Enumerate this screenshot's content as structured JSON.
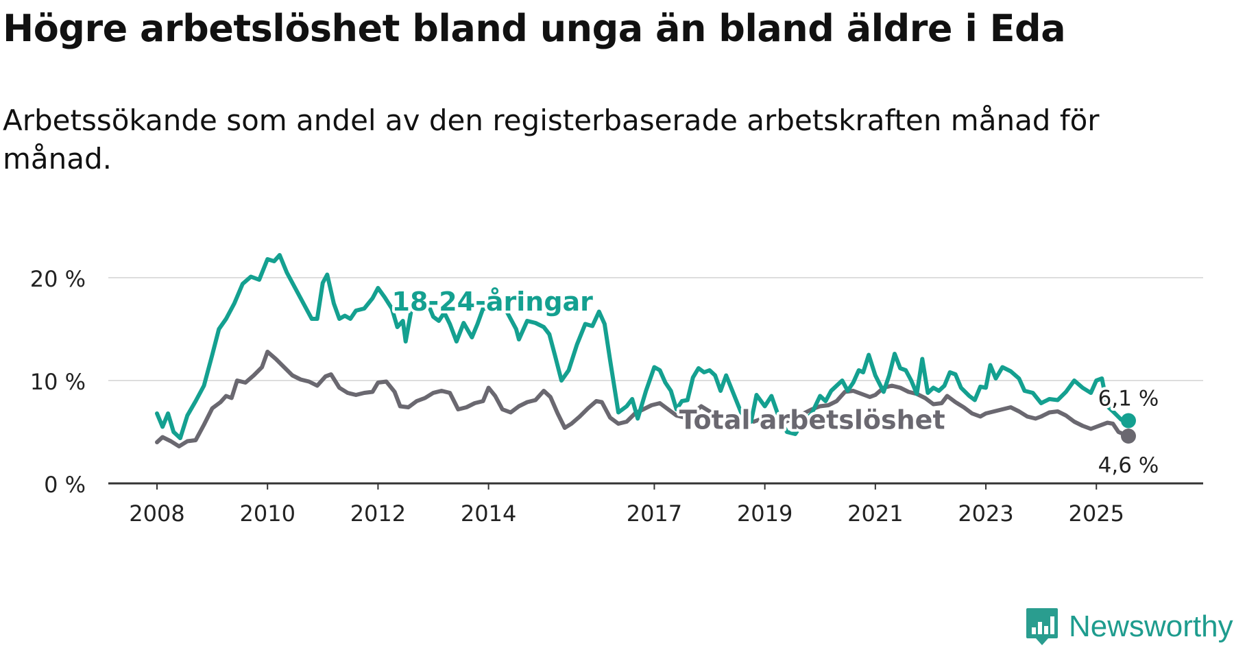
{
  "header": {
    "title": "Högre arbetslöshet bland unga än bland äldre i Eda",
    "subtitle": "Arbetssökande som andel av den registerbaserade arbetskraften månad för månad."
  },
  "brand": {
    "name": "Newsworthy",
    "icon": "bar-chart-logo-icon",
    "color": "#2a9d8f"
  },
  "colors": {
    "youth": "#14a090",
    "total": "#6a6870",
    "grid": "#dddddd",
    "axis": "#333333"
  },
  "chart_data": {
    "type": "line",
    "title": "Högre arbetslöshet bland unga än bland äldre i Eda",
    "xlabel": "",
    "ylabel": "",
    "xlim": [
      2008.0,
      2026.25
    ],
    "ylim": [
      0,
      21
    ],
    "y_ticks": [
      0,
      10,
      20
    ],
    "y_tick_labels": [
      "0 %",
      "10 %",
      "20 %"
    ],
    "x_ticks": [
      2008,
      2010,
      2012,
      2014,
      2017,
      2019,
      2021,
      2023,
      2025
    ],
    "x_tick_labels": [
      "2008",
      "2010",
      "2012",
      "2014",
      "2017",
      "2019",
      "2021",
      "2023",
      "2025"
    ],
    "series": [
      {
        "name": "18-24-åringar",
        "label": "18-24-åringar",
        "end_label": "6,1 %",
        "color": "#14a090",
        "points": [
          [
            2008.0,
            6.8
          ],
          [
            2008.1,
            5.5
          ],
          [
            2008.2,
            6.8
          ],
          [
            2008.3,
            5.0
          ],
          [
            2008.42,
            4.4
          ],
          [
            2008.55,
            6.6
          ],
          [
            2008.7,
            8.0
          ],
          [
            2008.85,
            9.5
          ],
          [
            2009.0,
            12.5
          ],
          [
            2009.12,
            15.0
          ],
          [
            2009.25,
            16.0
          ],
          [
            2009.4,
            17.5
          ],
          [
            2009.55,
            19.4
          ],
          [
            2009.7,
            20.1
          ],
          [
            2009.85,
            19.8
          ],
          [
            2010.0,
            21.8
          ],
          [
            2010.12,
            21.6
          ],
          [
            2010.22,
            22.2
          ],
          [
            2010.35,
            20.5
          ],
          [
            2010.5,
            19.0
          ],
          [
            2010.65,
            17.5
          ],
          [
            2010.8,
            16.0
          ],
          [
            2010.9,
            16.0
          ],
          [
            2011.0,
            19.5
          ],
          [
            2011.08,
            20.3
          ],
          [
            2011.2,
            17.5
          ],
          [
            2011.3,
            16.0
          ],
          [
            2011.4,
            16.3
          ],
          [
            2011.5,
            16.0
          ],
          [
            2011.6,
            16.8
          ],
          [
            2011.75,
            17.0
          ],
          [
            2011.9,
            18.0
          ],
          [
            2012.0,
            19.0
          ],
          [
            2012.12,
            18.1
          ],
          [
            2012.25,
            17.0
          ],
          [
            2012.35,
            15.2
          ],
          [
            2012.45,
            15.8
          ],
          [
            2012.5,
            13.8
          ],
          [
            2012.6,
            16.8
          ],
          [
            2012.75,
            17.0
          ],
          [
            2012.9,
            17.5
          ],
          [
            2013.0,
            16.2
          ],
          [
            2013.1,
            15.8
          ],
          [
            2013.2,
            16.6
          ],
          [
            2013.3,
            15.5
          ],
          [
            2013.42,
            13.8
          ],
          [
            2013.55,
            15.6
          ],
          [
            2013.7,
            14.2
          ],
          [
            2013.8,
            15.5
          ],
          [
            2013.9,
            17.0
          ],
          [
            2014.05,
            17.0
          ],
          [
            2014.3,
            17.0
          ],
          [
            2014.5,
            15.0
          ],
          [
            2014.55,
            14.0
          ],
          [
            2014.7,
            15.8
          ],
          [
            2014.85,
            15.6
          ],
          [
            2015.0,
            15.2
          ],
          [
            2015.1,
            14.5
          ],
          [
            2015.2,
            12.5
          ],
          [
            2015.32,
            10.0
          ],
          [
            2015.45,
            11.0
          ],
          [
            2015.6,
            13.5
          ],
          [
            2015.75,
            15.5
          ],
          [
            2015.88,
            15.3
          ],
          [
            2016.0,
            16.7
          ],
          [
            2016.1,
            15.5
          ],
          [
            2016.2,
            12.0
          ],
          [
            2016.35,
            6.9
          ],
          [
            2016.5,
            7.5
          ],
          [
            2016.6,
            8.2
          ],
          [
            2016.7,
            6.3
          ],
          [
            2016.85,
            9.0
          ],
          [
            2017.0,
            11.3
          ],
          [
            2017.1,
            11.0
          ],
          [
            2017.2,
            9.8
          ],
          [
            2017.3,
            9.0
          ],
          [
            2017.4,
            7.2
          ],
          [
            2017.5,
            8.0
          ],
          [
            2017.6,
            8.1
          ],
          [
            2017.7,
            10.3
          ],
          [
            2017.8,
            11.2
          ],
          [
            2017.9,
            10.8
          ],
          [
            2018.0,
            11.0
          ],
          [
            2018.1,
            10.5
          ],
          [
            2018.2,
            9.0
          ],
          [
            2018.3,
            10.5
          ],
          [
            2018.45,
            8.5
          ],
          [
            2018.6,
            6.5
          ],
          [
            2018.75,
            6.0
          ],
          [
            2018.85,
            8.6
          ],
          [
            2019.0,
            7.5
          ],
          [
            2019.12,
            8.5
          ],
          [
            2019.25,
            6.5
          ],
          [
            2019.4,
            5.0
          ],
          [
            2019.55,
            4.8
          ],
          [
            2019.7,
            6.0
          ],
          [
            2019.85,
            6.8
          ],
          [
            2020.0,
            8.5
          ],
          [
            2020.1,
            8.0
          ],
          [
            2020.2,
            9.0
          ],
          [
            2020.3,
            9.5
          ],
          [
            2020.4,
            10.0
          ],
          [
            2020.5,
            9.0
          ],
          [
            2020.6,
            9.8
          ],
          [
            2020.7,
            11.0
          ],
          [
            2020.78,
            10.8
          ],
          [
            2020.88,
            12.5
          ],
          [
            2021.0,
            10.5
          ],
          [
            2021.15,
            8.9
          ],
          [
            2021.25,
            10.5
          ],
          [
            2021.35,
            12.6
          ],
          [
            2021.45,
            11.2
          ],
          [
            2021.55,
            11.0
          ],
          [
            2021.65,
            10.0
          ],
          [
            2021.75,
            8.7
          ],
          [
            2021.85,
            12.1
          ],
          [
            2021.95,
            8.8
          ],
          [
            2022.05,
            9.3
          ],
          [
            2022.15,
            9.0
          ],
          [
            2022.25,
            9.5
          ],
          [
            2022.35,
            10.8
          ],
          [
            2022.45,
            10.6
          ],
          [
            2022.55,
            9.3
          ],
          [
            2022.7,
            8.5
          ],
          [
            2022.8,
            8.1
          ],
          [
            2022.9,
            9.4
          ],
          [
            2023.0,
            9.3
          ],
          [
            2023.08,
            11.5
          ],
          [
            2023.18,
            10.2
          ],
          [
            2023.3,
            11.3
          ],
          [
            2023.45,
            10.9
          ],
          [
            2023.6,
            10.2
          ],
          [
            2023.7,
            9.0
          ],
          [
            2023.85,
            8.8
          ],
          [
            2024.0,
            7.8
          ],
          [
            2024.15,
            8.2
          ],
          [
            2024.3,
            8.1
          ],
          [
            2024.45,
            8.9
          ],
          [
            2024.6,
            10.0
          ],
          [
            2024.75,
            9.3
          ],
          [
            2024.9,
            8.8
          ],
          [
            2025.0,
            10.0
          ],
          [
            2025.1,
            10.2
          ],
          [
            2025.2,
            7.5
          ],
          [
            2025.3,
            7.0
          ],
          [
            2025.45,
            6.2
          ],
          [
            2025.58,
            6.1
          ]
        ]
      },
      {
        "name": "Total arbetslöshet",
        "label": "Total arbetslöshet",
        "end_label": "4,6 %",
        "color": "#6a6870",
        "points": [
          [
            2008.0,
            4.0
          ],
          [
            2008.1,
            4.5
          ],
          [
            2008.25,
            4.1
          ],
          [
            2008.4,
            3.6
          ],
          [
            2008.55,
            4.1
          ],
          [
            2008.7,
            4.2
          ],
          [
            2008.85,
            5.7
          ],
          [
            2009.0,
            7.3
          ],
          [
            2009.15,
            7.9
          ],
          [
            2009.25,
            8.5
          ],
          [
            2009.35,
            8.3
          ],
          [
            2009.45,
            10.0
          ],
          [
            2009.6,
            9.8
          ],
          [
            2009.75,
            10.5
          ],
          [
            2009.9,
            11.3
          ],
          [
            2010.0,
            12.8
          ],
          [
            2010.15,
            12.1
          ],
          [
            2010.3,
            11.3
          ],
          [
            2010.45,
            10.5
          ],
          [
            2010.6,
            10.1
          ],
          [
            2010.75,
            9.9
          ],
          [
            2010.9,
            9.5
          ],
          [
            2011.05,
            10.4
          ],
          [
            2011.15,
            10.6
          ],
          [
            2011.3,
            9.3
          ],
          [
            2011.45,
            8.8
          ],
          [
            2011.6,
            8.6
          ],
          [
            2011.75,
            8.8
          ],
          [
            2011.9,
            8.9
          ],
          [
            2012.0,
            9.8
          ],
          [
            2012.15,
            9.9
          ],
          [
            2012.3,
            8.9
          ],
          [
            2012.4,
            7.5
          ],
          [
            2012.55,
            7.4
          ],
          [
            2012.7,
            8.0
          ],
          [
            2012.85,
            8.3
          ],
          [
            2013.0,
            8.8
          ],
          [
            2013.15,
            9.0
          ],
          [
            2013.3,
            8.8
          ],
          [
            2013.45,
            7.2
          ],
          [
            2013.6,
            7.4
          ],
          [
            2013.75,
            7.8
          ],
          [
            2013.9,
            8.0
          ],
          [
            2014.0,
            9.3
          ],
          [
            2014.12,
            8.5
          ],
          [
            2014.25,
            7.2
          ],
          [
            2014.4,
            6.9
          ],
          [
            2014.55,
            7.5
          ],
          [
            2014.7,
            7.9
          ],
          [
            2014.85,
            8.1
          ],
          [
            2015.0,
            9.0
          ],
          [
            2015.12,
            8.4
          ],
          [
            2015.25,
            6.8
          ],
          [
            2015.38,
            5.4
          ],
          [
            2015.5,
            5.8
          ],
          [
            2015.65,
            6.5
          ],
          [
            2015.8,
            7.3
          ],
          [
            2015.95,
            8.0
          ],
          [
            2016.05,
            7.9
          ],
          [
            2016.2,
            6.4
          ],
          [
            2016.35,
            5.8
          ],
          [
            2016.5,
            6.0
          ],
          [
            2016.65,
            6.8
          ],
          [
            2016.8,
            7.2
          ],
          [
            2016.95,
            7.6
          ],
          [
            2017.1,
            7.8
          ],
          [
            2017.25,
            7.2
          ],
          [
            2017.4,
            6.6
          ],
          [
            2017.55,
            6.4
          ],
          [
            2017.7,
            6.8
          ],
          [
            2017.85,
            7.5
          ],
          [
            2018.0,
            7.0
          ],
          [
            2018.2,
            6.6
          ],
          [
            2018.4,
            6.2
          ],
          [
            2018.6,
            6.4
          ],
          [
            2018.8,
            6.0
          ],
          [
            2019.0,
            6.4
          ],
          [
            2019.15,
            6.3
          ],
          [
            2019.3,
            5.8
          ],
          [
            2019.5,
            6.3
          ],
          [
            2019.7,
            6.8
          ],
          [
            2019.85,
            7.2
          ],
          [
            2020.0,
            7.5
          ],
          [
            2020.15,
            7.6
          ],
          [
            2020.3,
            8.0
          ],
          [
            2020.45,
            8.9
          ],
          [
            2020.6,
            9.0
          ],
          [
            2020.75,
            8.7
          ],
          [
            2020.9,
            8.4
          ],
          [
            2021.0,
            8.6
          ],
          [
            2021.15,
            9.3
          ],
          [
            2021.3,
            9.5
          ],
          [
            2021.45,
            9.3
          ],
          [
            2021.6,
            8.9
          ],
          [
            2021.75,
            8.7
          ],
          [
            2021.9,
            8.3
          ],
          [
            2022.05,
            7.7
          ],
          [
            2022.2,
            7.8
          ],
          [
            2022.3,
            8.5
          ],
          [
            2022.45,
            7.9
          ],
          [
            2022.6,
            7.4
          ],
          [
            2022.75,
            6.8
          ],
          [
            2022.9,
            6.5
          ],
          [
            2023.0,
            6.8
          ],
          [
            2023.15,
            7.0
          ],
          [
            2023.3,
            7.2
          ],
          [
            2023.45,
            7.4
          ],
          [
            2023.6,
            7.0
          ],
          [
            2023.75,
            6.5
          ],
          [
            2023.9,
            6.3
          ],
          [
            2024.0,
            6.5
          ],
          [
            2024.15,
            6.9
          ],
          [
            2024.3,
            7.0
          ],
          [
            2024.45,
            6.6
          ],
          [
            2024.6,
            6.0
          ],
          [
            2024.75,
            5.6
          ],
          [
            2024.9,
            5.3
          ],
          [
            2025.0,
            5.5
          ],
          [
            2025.1,
            5.7
          ],
          [
            2025.2,
            5.9
          ],
          [
            2025.3,
            5.8
          ],
          [
            2025.4,
            5.0
          ],
          [
            2025.58,
            4.6
          ]
        ]
      }
    ]
  }
}
